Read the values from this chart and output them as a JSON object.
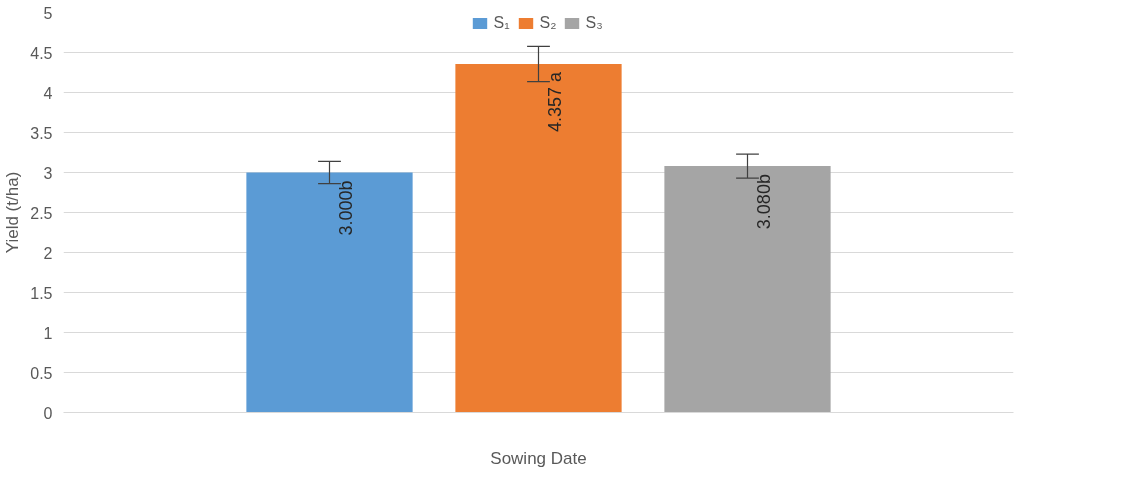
{
  "chart_data": {
    "type": "bar",
    "xlabel": "Sowing Date",
    "ylabel": "Yield (t/ha)",
    "categories": [
      null
    ],
    "series": [
      {
        "name": "S₁",
        "color": "#5b9bd5",
        "values": [
          3.0
        ],
        "errors": [
          0.14
        ],
        "value_labels": [
          "3.000b"
        ]
      },
      {
        "name": "S₂",
        "color": "#ed7d31",
        "values": [
          4.357
        ],
        "errors": [
          0.22
        ],
        "value_labels": [
          "4.357 a"
        ]
      },
      {
        "name": "S₃",
        "color": "#a5a5a5",
        "values": [
          3.08
        ],
        "errors": [
          0.15
        ],
        "value_labels": [
          "3.080b"
        ]
      }
    ],
    "ylim": [
      0,
      5
    ],
    "yticks": [
      0,
      0.5,
      1,
      1.5,
      2,
      2.5,
      3,
      3.5,
      4,
      4.5,
      5
    ],
    "grid": "y",
    "legend": "top"
  }
}
